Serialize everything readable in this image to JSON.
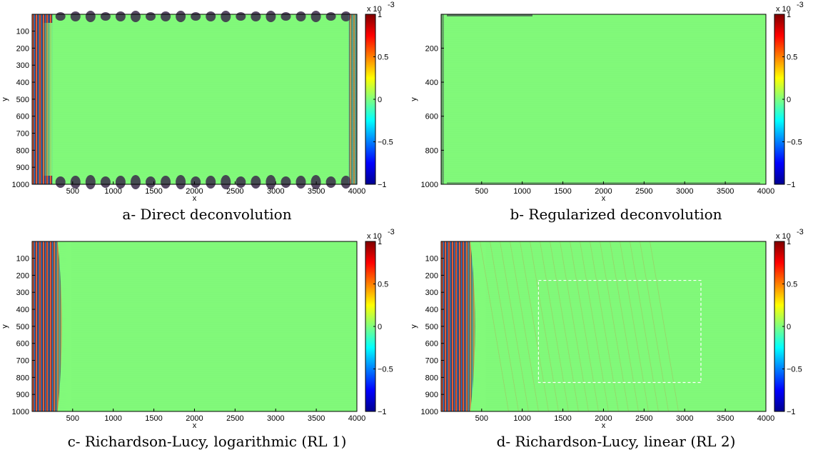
{
  "chart_data": [
    {
      "type": "heatmap",
      "caption": "a- Direct deconvolution",
      "xlabel": "x",
      "ylabel": "y",
      "xlim": [
        1,
        4000
      ],
      "ylim": [
        1,
        1000
      ],
      "xticks": [
        500,
        1000,
        1500,
        2000,
        2500,
        3000,
        3500,
        4000
      ],
      "xtick_labels": [
        "500",
        "1000",
        "1500",
        "2000",
        "2500",
        "3000",
        "3500",
        "4000"
      ],
      "yticks": [
        100,
        200,
        300,
        400,
        500,
        600,
        700,
        800,
        900,
        1000
      ],
      "ytick_labels": [
        "100",
        "200",
        "300",
        "400",
        "500",
        "600",
        "700",
        "800",
        "900",
        "1000"
      ],
      "colorbar": {
        "ticks": [
          -1,
          -0.5,
          0,
          0.5,
          1
        ],
        "tick_labels": [
          "−1",
          "−0.5",
          "0",
          "0.5",
          "1"
        ],
        "exponent_label": "x 10",
        "exponent": "-3",
        "colormap": "jet"
      },
      "artifacts": "left-edge band and scalloped top/bottom borders",
      "dashed_box": null
    },
    {
      "type": "heatmap",
      "caption": "b- Regularized deconvolution",
      "xlabel": "x",
      "ylabel": "y",
      "xlim": [
        1,
        4000
      ],
      "ylim": [
        1,
        1000
      ],
      "xticks": [
        500,
        1000,
        1500,
        2000,
        2500,
        3000,
        3500,
        4000
      ],
      "xtick_labels": [
        "500",
        "1000",
        "1500",
        "2000",
        "2500",
        "3000",
        "3500",
        "4000"
      ],
      "yticks": [
        200,
        400,
        600,
        800,
        1000
      ],
      "ytick_labels": [
        "200",
        "400",
        "600",
        "800",
        "1000"
      ],
      "colorbar": {
        "ticks": [
          -1,
          -0.5,
          0,
          0.5,
          1
        ],
        "tick_labels": [
          "−1",
          "−0.5",
          "0",
          "0.5",
          "1"
        ],
        "exponent_label": "x 10",
        "exponent": "-3",
        "colormap": "jet"
      },
      "artifacts": "thin top and bottom edge",
      "dashed_box": null
    },
    {
      "type": "heatmap",
      "caption": "c- Richardson-Lucy, logarithmic (RL 1)",
      "xlabel": "x",
      "ylabel": "y",
      "xlim": [
        1,
        4000
      ],
      "ylim": [
        1,
        1000
      ],
      "xticks": [
        500,
        1000,
        1500,
        2000,
        2500,
        3000,
        3500,
        4000
      ],
      "xtick_labels": [
        "500",
        "1000",
        "1500",
        "2000",
        "2500",
        "3000",
        "3500",
        "4000"
      ],
      "yticks": [
        100,
        200,
        300,
        400,
        500,
        600,
        700,
        800,
        900,
        1000
      ],
      "ytick_labels": [
        "100",
        "200",
        "300",
        "400",
        "500",
        "600",
        "700",
        "800",
        "900",
        "1000"
      ],
      "colorbar": {
        "ticks": [
          -1,
          -0.5,
          0,
          0.5,
          1
        ],
        "tick_labels": [
          "−1",
          "−0.5",
          "0",
          "0.5",
          "1"
        ],
        "exponent_label": "x 10",
        "exponent": "-3",
        "colormap": "jet"
      },
      "artifacts": "left fringe band",
      "dashed_box": null
    },
    {
      "type": "heatmap",
      "caption": "d- Richardson-Lucy, linear (RL 2)",
      "xlabel": "x",
      "ylabel": "y",
      "xlim": [
        1,
        4000
      ],
      "ylim": [
        1,
        1000
      ],
      "xticks": [
        500,
        1000,
        1500,
        2000,
        2500,
        3000,
        3500,
        4000
      ],
      "xtick_labels": [
        "500",
        "1000",
        "1500",
        "2000",
        "2500",
        "3000",
        "3500",
        "4000"
      ],
      "yticks": [
        100,
        200,
        300,
        400,
        500,
        600,
        700,
        800,
        900,
        1000
      ],
      "ytick_labels": [
        "100",
        "200",
        "300",
        "400",
        "500",
        "600",
        "700",
        "800",
        "900",
        "1000"
      ],
      "colorbar": {
        "ticks": [
          -1,
          -0.5,
          0,
          0.5,
          1
        ],
        "tick_labels": [
          "−1",
          "−0.5",
          "0",
          "0.5",
          "1"
        ],
        "exponent_label": "x 10",
        "exponent": "-3",
        "colormap": "jet"
      },
      "artifacts": "left fringe band with wider ripples",
      "dashed_box": {
        "x": [
          1200,
          3200
        ],
        "y": [
          230,
          830
        ]
      }
    }
  ]
}
